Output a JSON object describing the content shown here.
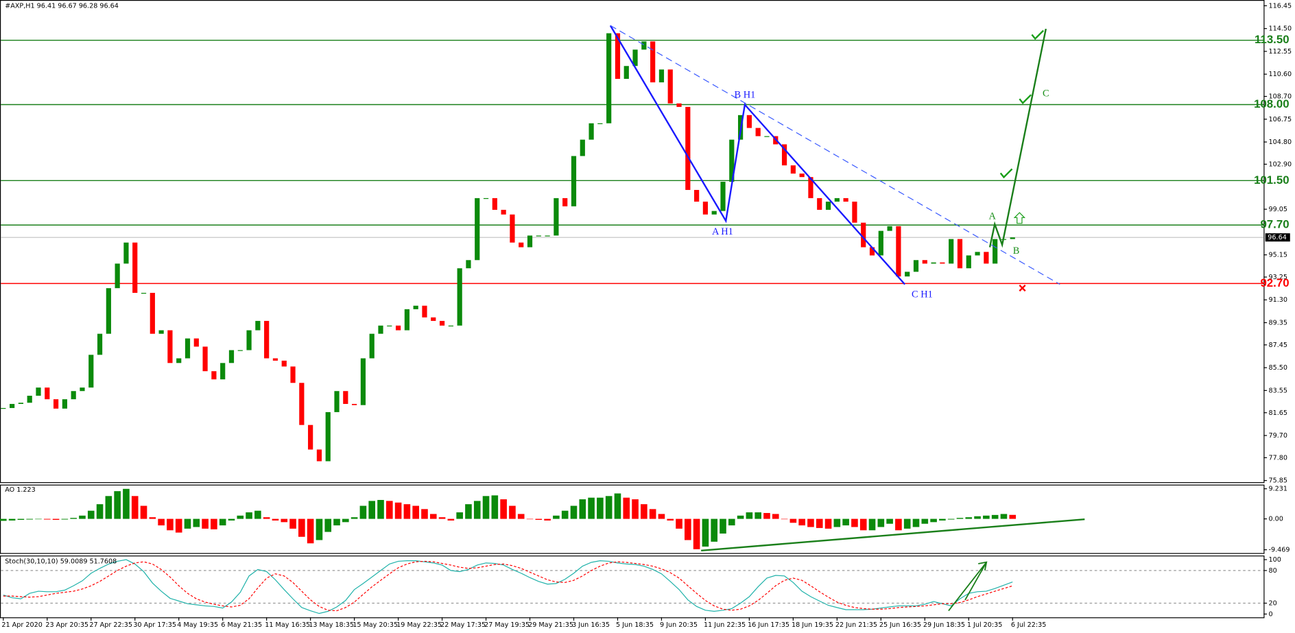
{
  "chart_data": [
    {
      "type": "candlestick",
      "title": "#AXP,H1  96.41 96.67 96.28 96.64",
      "categories": [
        "21 Apr 2020",
        null,
        null,
        null,
        null,
        "23 Apr 20:35",
        null,
        null,
        null,
        null,
        "27 Apr 22:35",
        null,
        null,
        null,
        null,
        "30 Apr 17:35",
        null,
        null,
        null,
        null,
        "4 May 19:35",
        null,
        null,
        null,
        null,
        "6 May 21:35",
        null,
        null,
        null,
        null,
        "11 May 16:35",
        null,
        null,
        null,
        null,
        "13 May 18:35",
        null,
        null,
        null,
        null,
        "15 May 20:35",
        null,
        null,
        null,
        null,
        "19 May 22:35",
        null,
        null,
        null,
        null,
        "22 May 17:35",
        null,
        null,
        null,
        null,
        "27 May 19:35",
        null,
        null,
        null,
        null,
        "29 May 21:35",
        null,
        null,
        null,
        null,
        "3 Jun 16:35",
        null,
        null,
        null,
        null,
        "5 Jun 18:35",
        null,
        null,
        null,
        null,
        "9 Jun 20:35",
        null,
        null,
        null,
        null,
        "11 Jun 22:35",
        null,
        null,
        null,
        null,
        "16 Jun 17:35",
        null,
        null,
        null,
        null,
        "18 Jun 19:35",
        null,
        null,
        null,
        null,
        "22 Jun 21:35",
        null,
        null,
        null,
        null,
        "25 Jun 16:35",
        null,
        null,
        null,
        null,
        "29 Jun 18:35",
        null,
        null,
        null,
        null,
        "1 Jul 20:35",
        null,
        null,
        null,
        null,
        "6 Jul 22:35"
      ],
      "values": [
        82.05,
        82.4,
        82.5,
        83.1,
        83.8,
        82.8,
        82.0,
        82.8,
        83.5,
        83.8,
        86.6,
        88.4,
        92.3,
        94.4,
        96.2,
        91.9,
        91.9,
        88.4,
        88.7,
        85.9,
        86.3,
        88.0,
        87.3,
        85.2,
        84.5,
        85.9,
        87.0,
        87.0,
        88.7,
        89.5,
        86.3,
        86.1,
        85.6,
        84.2,
        80.6,
        78.5,
        77.5,
        81.7,
        83.5,
        82.4,
        82.3,
        86.3,
        88.4,
        89.1,
        89.1,
        88.7,
        90.5,
        90.8,
        89.8,
        89.5,
        89.1,
        89.1,
        94.0,
        94.7,
        100.0,
        100.0,
        99.0,
        98.6,
        96.2,
        95.8,
        96.8,
        96.8,
        96.8,
        100.0,
        99.3,
        103.6,
        105.0,
        106.4,
        106.4,
        114.1,
        110.2,
        111.3,
        112.7,
        113.4,
        109.9,
        111.0,
        108.1,
        107.8,
        100.7,
        99.7,
        98.6,
        98.9,
        101.4,
        105.0,
        107.1,
        106.0,
        105.3,
        105.3,
        104.6,
        102.8,
        102.1,
        101.8,
        100.0,
        99.0,
        99.7,
        100.0,
        99.7,
        97.9,
        95.8,
        95.1,
        97.2,
        97.6,
        93.3,
        93.7,
        94.7,
        94.4,
        94.5,
        94.4,
        96.5,
        94.0,
        95.1,
        95.4,
        94.4,
        96.5,
        96.5,
        96.64
      ],
      "up_color": "#0b8a0b",
      "down_color": "#ff0000",
      "ylim": [
        75.85,
        116.45
      ],
      "yticks": [
        116.45,
        {
          "value": 114.5,
          "label": "114.50"
        },
        112.55,
        {
          "value": 110.6,
          "label": "110.60"
        },
        {
          "value": 108.7,
          "label": "108.70"
        },
        106.75,
        {
          "value": 104.8,
          "label": "104.80"
        },
        {
          "value": 102.9,
          "label": "102.90"
        },
        99.05,
        95.15,
        93.25,
        {
          "value": 91.3,
          "label": "91.30"
        },
        89.35,
        87.45,
        {
          "value": 85.5,
          "label": "85.50"
        },
        83.55,
        81.65,
        {
          "value": 79.7,
          "label": "79.70"
        },
        {
          "value": 77.8,
          "label": "77.80"
        },
        75.85
      ],
      "levels": [
        {
          "value": 113.5,
          "label": "113.50",
          "color": "#1a7f1a"
        },
        {
          "value": 108,
          "label": "108.00",
          "color": "#1a7f1a"
        },
        {
          "value": 101.5,
          "label": "101.50",
          "color": "#1a7f1a"
        },
        {
          "value": 97.7,
          "label": "97.70",
          "color": "#1a7f1a"
        },
        {
          "value": 92.7,
          "label": "92.70",
          "color": "#ff0000"
        }
      ],
      "last_price": 96.64,
      "annotations": [
        "B H1",
        "A H1",
        "C H1",
        "A",
        "B",
        "C"
      ]
    },
    {
      "type": "histogram",
      "title": "AO 1.223",
      "values": [
        -0.6,
        -0.5,
        -0.3,
        -0.2,
        0.0,
        -0.2,
        -0.3,
        -0.2,
        0.3,
        1.0,
        2.5,
        4.5,
        7.0,
        8.5,
        9.2,
        7.0,
        4.0,
        0.5,
        -2.0,
        -3.5,
        -4.2,
        -3.0,
        -2.5,
        -3.0,
        -3.2,
        -2.0,
        -0.5,
        1.0,
        2.0,
        2.5,
        0.5,
        -0.5,
        -1.0,
        -3.0,
        -5.5,
        -7.5,
        -6.5,
        -4.0,
        -2.0,
        -1.0,
        0.5,
        4.0,
        5.5,
        5.8,
        5.5,
        5.0,
        4.5,
        4.0,
        3.0,
        1.5,
        0.5,
        -0.5,
        2.0,
        4.5,
        5.5,
        7.0,
        7.2,
        6.0,
        4.0,
        1.5,
        0.0,
        -0.3,
        -0.5,
        1.0,
        2.5,
        4.0,
        6.0,
        6.5,
        6.5,
        7.0,
        7.8,
        6.5,
        6.0,
        4.5,
        3.0,
        1.5,
        -0.5,
        -3.0,
        -6.5,
        -9.3,
        -8.5,
        -7.0,
        -4.5,
        -2.0,
        1.0,
        2.0,
        2.0,
        1.8,
        1.5,
        0.0,
        -1.2,
        -2.0,
        -2.5,
        -2.8,
        -3.0,
        -2.5,
        -2.0,
        -2.5,
        -3.5,
        -3.5,
        -2.5,
        -1.5,
        -3.5,
        -3.0,
        -2.5,
        -1.5,
        -1.0,
        -0.5,
        -0.2,
        0.3,
        0.5,
        0.8,
        1.0,
        1.2,
        1.5,
        1.223
      ],
      "up_color": "#0b8a0b",
      "down_color": "#ff0000",
      "ylim": [
        -9.469,
        9.231
      ],
      "yticks": [
        9.231,
        {
          "value": 0,
          "label": "0.00"
        },
        -9.469
      ]
    },
    {
      "type": "line",
      "title": "Stoch(30,10,10) 59.0089 51.7608",
      "series": [
        {
          "color": "#20b2aa",
          "dash": false,
          "values": [
            35,
            30,
            28,
            38,
            42,
            41,
            41,
            44,
            52,
            61,
            75,
            84,
            92,
            97,
            100,
            92,
            78,
            57,
            42,
            29,
            24,
            19,
            17,
            15,
            14,
            11,
            22,
            40,
            70,
            82,
            78,
            63,
            45,
            28,
            12,
            6,
            1,
            5,
            13,
            25,
            45,
            56,
            68,
            80,
            92,
            97,
            98,
            98,
            96,
            94,
            90,
            80,
            78,
            82,
            90,
            94,
            93,
            90,
            82,
            75,
            67,
            60,
            55,
            56,
            64,
            75,
            88,
            95,
            98,
            97,
            94,
            92,
            91,
            88,
            82,
            74,
            60,
            45,
            26,
            14,
            7,
            5,
            7,
            10,
            20,
            32,
            50,
            66,
            71,
            70,
            58,
            42,
            32,
            24,
            16,
            12,
            8,
            8,
            8,
            9,
            11,
            13,
            15,
            15,
            15,
            18,
            23,
            19,
            15,
            28,
            38,
            41,
            42,
            47,
            53,
            59.0089
          ]
        },
        {
          "color": "#ff0000",
          "dash": true,
          "values": [
            33,
            33,
            32,
            31,
            32,
            35,
            38,
            40,
            42,
            46,
            52,
            60,
            70,
            80,
            88,
            94,
            96,
            92,
            82,
            68,
            52,
            38,
            28,
            22,
            18,
            15,
            13,
            16,
            28,
            48,
            66,
            74,
            70,
            58,
            42,
            26,
            14,
            7,
            6,
            12,
            22,
            36,
            50,
            62,
            74,
            85,
            92,
            96,
            97,
            96,
            93,
            90,
            86,
            84,
            85,
            88,
            91,
            92,
            89,
            84,
            77,
            70,
            63,
            59,
            58,
            62,
            70,
            80,
            88,
            94,
            96,
            95,
            93,
            91,
            88,
            83,
            76,
            66,
            52,
            38,
            25,
            15,
            9,
            7,
            9,
            15,
            25,
            38,
            52,
            62,
            66,
            62,
            52,
            41,
            31,
            22,
            16,
            12,
            10,
            9,
            9,
            10,
            12,
            13,
            14,
            15,
            17,
            19,
            19,
            21,
            26,
            32,
            37,
            42,
            47,
            51.7608
          ]
        }
      ],
      "ylim": [
        0,
        100
      ],
      "yticks": [
        100,
        80,
        20,
        0
      ],
      "levels": [
        80,
        20
      ]
    }
  ]
}
